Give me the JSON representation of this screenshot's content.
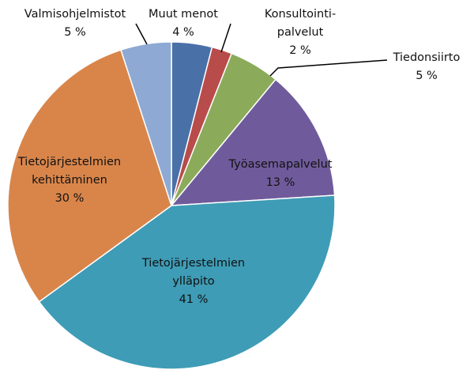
{
  "chart_data": {
    "type": "pie",
    "categories": [
      [
        "Muut menot"
      ],
      [
        "Konsultointi-",
        "palvelut"
      ],
      [
        "Tiedonsiirto"
      ],
      [
        "Työasemapalvelut"
      ],
      [
        "Tietojärjestelmien",
        "ylläpito"
      ],
      [
        "Tietojärjestelmien",
        "kehittäminen"
      ],
      [
        "Valmisohjelmistot"
      ]
    ],
    "values": [
      4,
      2,
      5,
      13,
      41,
      30,
      5
    ],
    "value_labels": [
      "4 %",
      "2 %",
      "5 %",
      "13 %",
      "41 %",
      "30 %",
      "5 %"
    ],
    "colors": [
      "#4a70a8",
      "#b84c4a",
      "#8bab5b",
      "#6f5b9b",
      "#3e9cb6",
      "#d9854a",
      "#8ea9d3"
    ]
  }
}
